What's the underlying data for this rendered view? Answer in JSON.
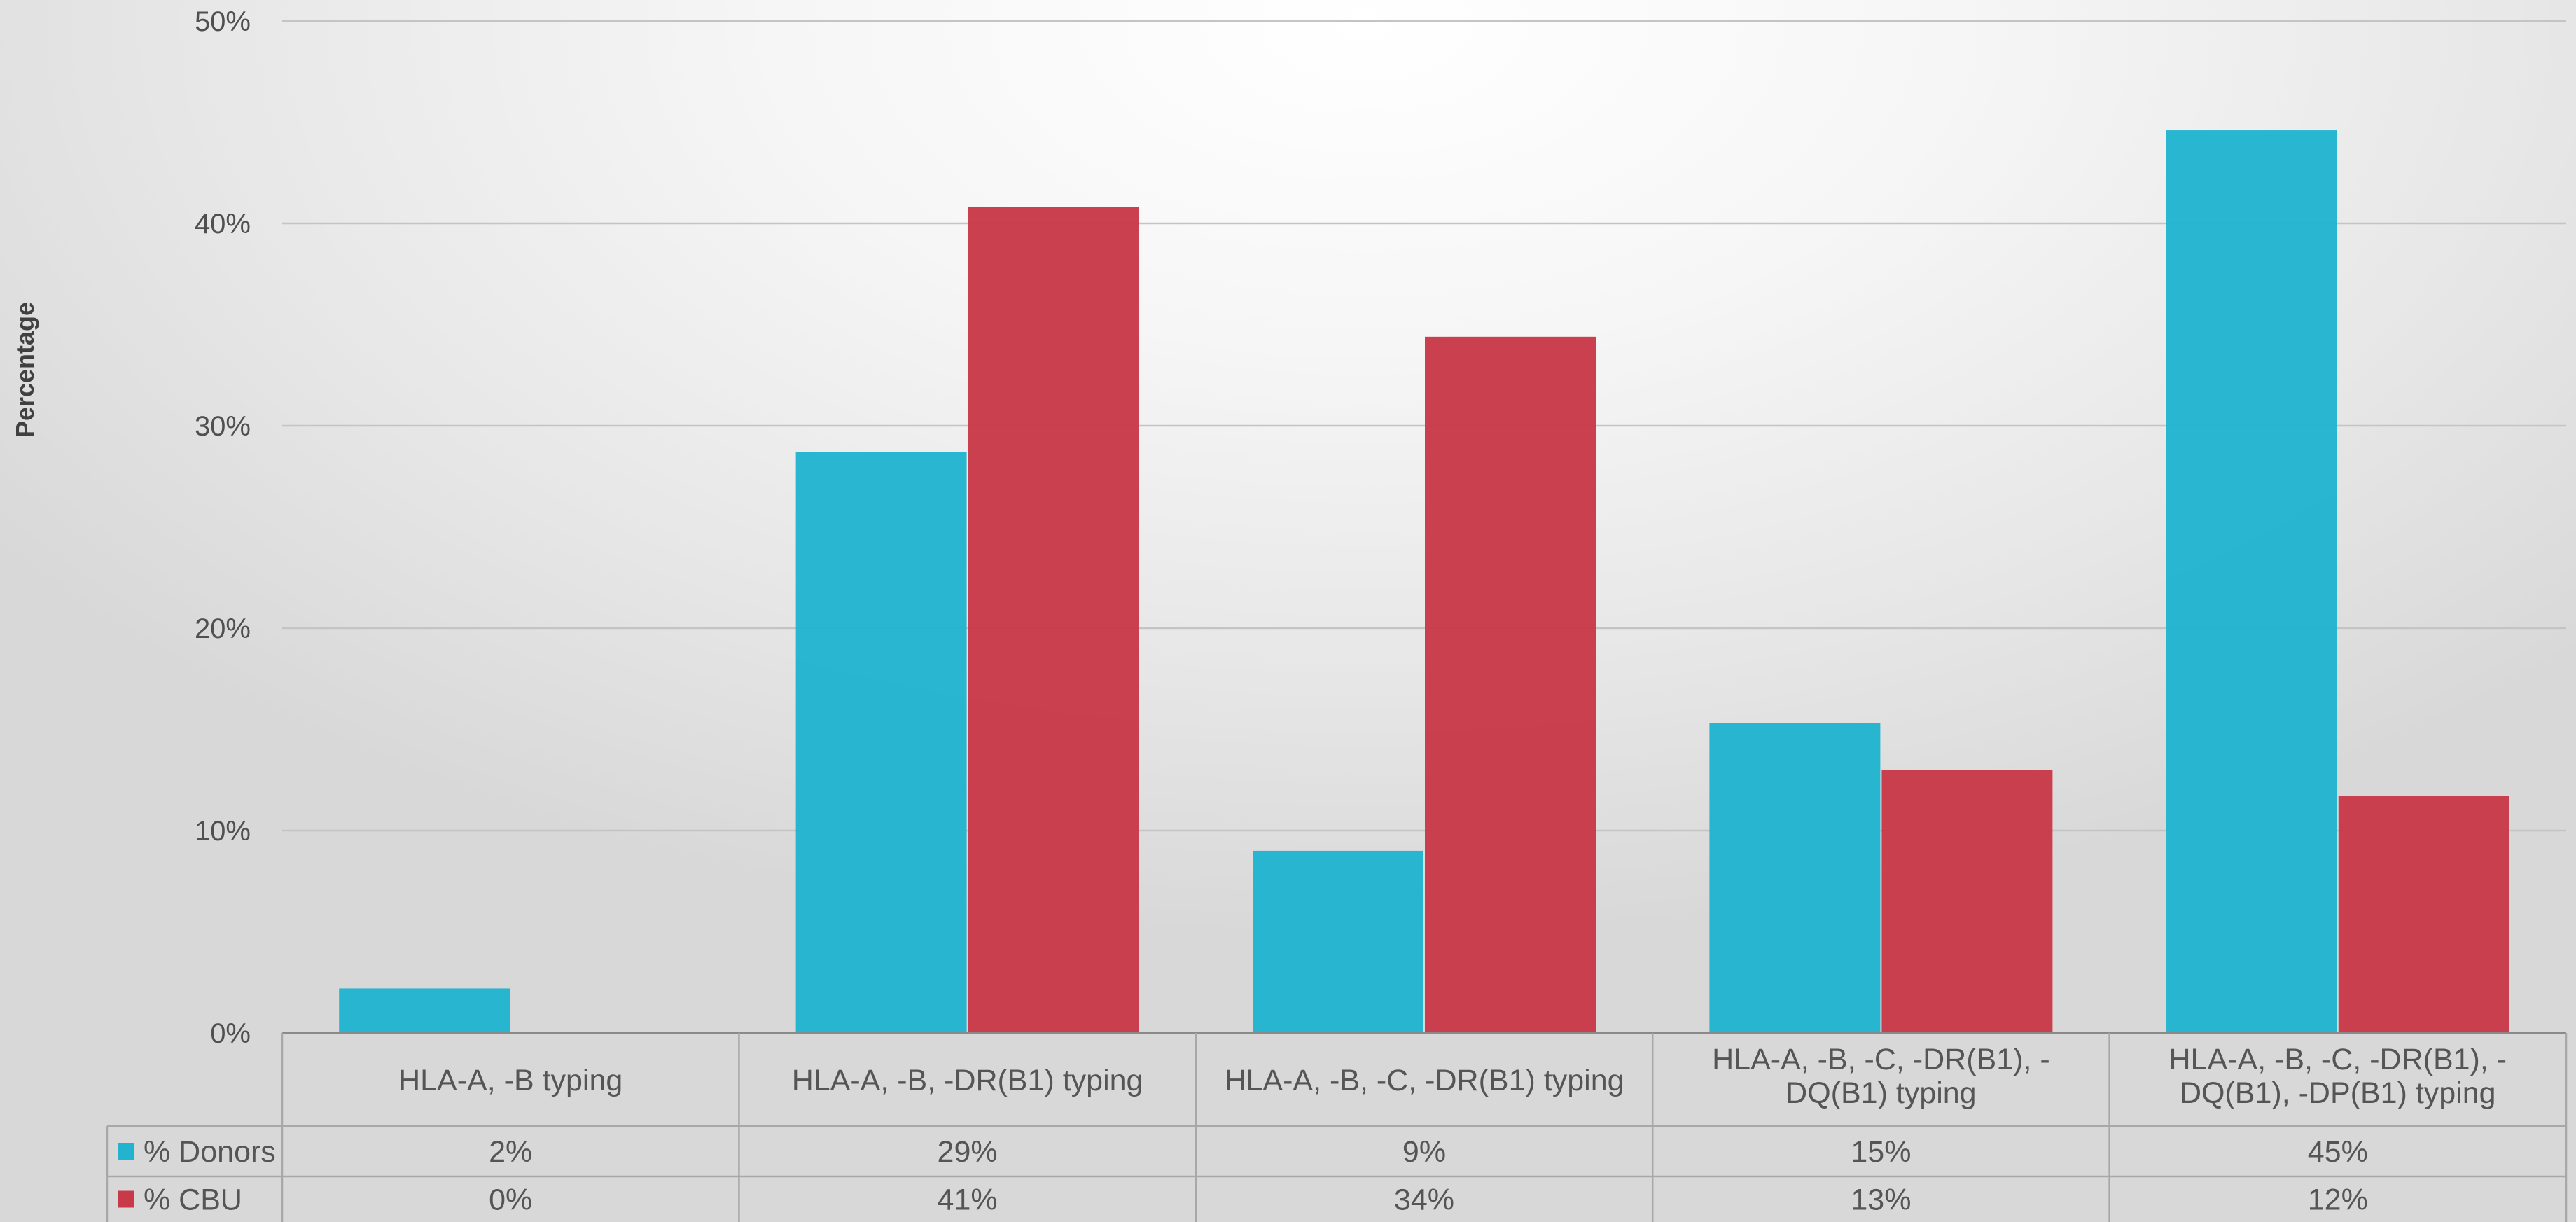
{
  "chart_data": {
    "type": "bar",
    "title": "",
    "xlabel": "",
    "ylabel": "Percentage",
    "ylim": [
      0,
      50
    ],
    "y_ticks": [
      "0%",
      "10%",
      "20%",
      "30%",
      "40%",
      "50%"
    ],
    "grid": true,
    "legend_placement": "data table rows, left",
    "categories": [
      [
        "HLA-A, -B typing"
      ],
      [
        "HLA-A, -B, -DR(B1) typing"
      ],
      [
        "HLA-A, -B, -C, -DR(B1) typing"
      ],
      [
        "HLA-A, -B, -C, -DR(B1), -",
        "DQ(B1) typing"
      ],
      [
        "HLA-A, -B, -C, -DR(B1), -",
        "DQ(B1), -DP(B1) typing"
      ]
    ],
    "series": [
      {
        "name": "% Donors",
        "color": "#22b4cf",
        "values": [
          2.2,
          28.7,
          9.0,
          15.3,
          44.6
        ],
        "labels": [
          "2%",
          "29%",
          "9%",
          "15%",
          "45%"
        ]
      },
      {
        "name": "% CBU",
        "color": "#c93a48",
        "values": [
          0,
          40.8,
          34.4,
          13.0,
          11.7
        ],
        "labels": [
          "0%",
          "41%",
          "34%",
          "13%",
          "12%"
        ]
      }
    ]
  }
}
